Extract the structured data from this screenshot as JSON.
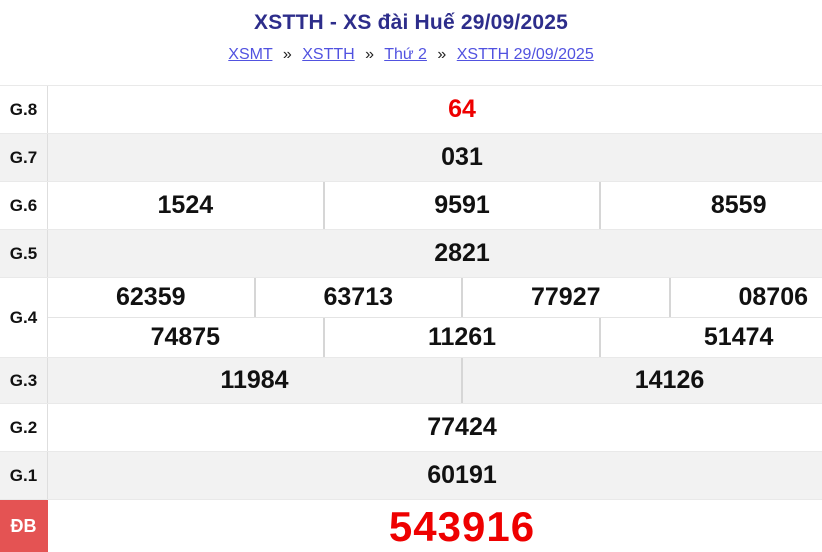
{
  "header": {
    "title": "XSTTH - XS đài Huế 29/09/2025",
    "separator": "»",
    "breadcrumb": [
      "XSMT",
      "XSTTH",
      "Thứ 2",
      "XSTTH 29/09/2025"
    ]
  },
  "table": {
    "rows": [
      {
        "label": "G.8",
        "values": [
          "64"
        ]
      },
      {
        "label": "G.7",
        "values": [
          "031"
        ]
      },
      {
        "label": "G.6",
        "values": [
          "1524",
          "9591",
          "8559"
        ]
      },
      {
        "label": "G.5",
        "values": [
          "2821"
        ]
      },
      {
        "label": "G.4",
        "line1": [
          "62359",
          "63713",
          "77927",
          "08706"
        ],
        "line2": [
          "74875",
          "11261",
          "51474"
        ]
      },
      {
        "label": "G.3",
        "values": [
          "11984",
          "14126"
        ]
      },
      {
        "label": "G.2",
        "values": [
          "77424"
        ]
      },
      {
        "label": "G.1",
        "values": [
          "60191"
        ]
      },
      {
        "label": "ĐB",
        "values": [
          "543916"
        ]
      }
    ]
  },
  "colors": {
    "title_navy": "#2d2d8b",
    "link_blue": "#5152e0",
    "value_red": "#ee0000",
    "db_badge_red": "#e45353",
    "row_alt_gray": "#f2f2f2"
  }
}
